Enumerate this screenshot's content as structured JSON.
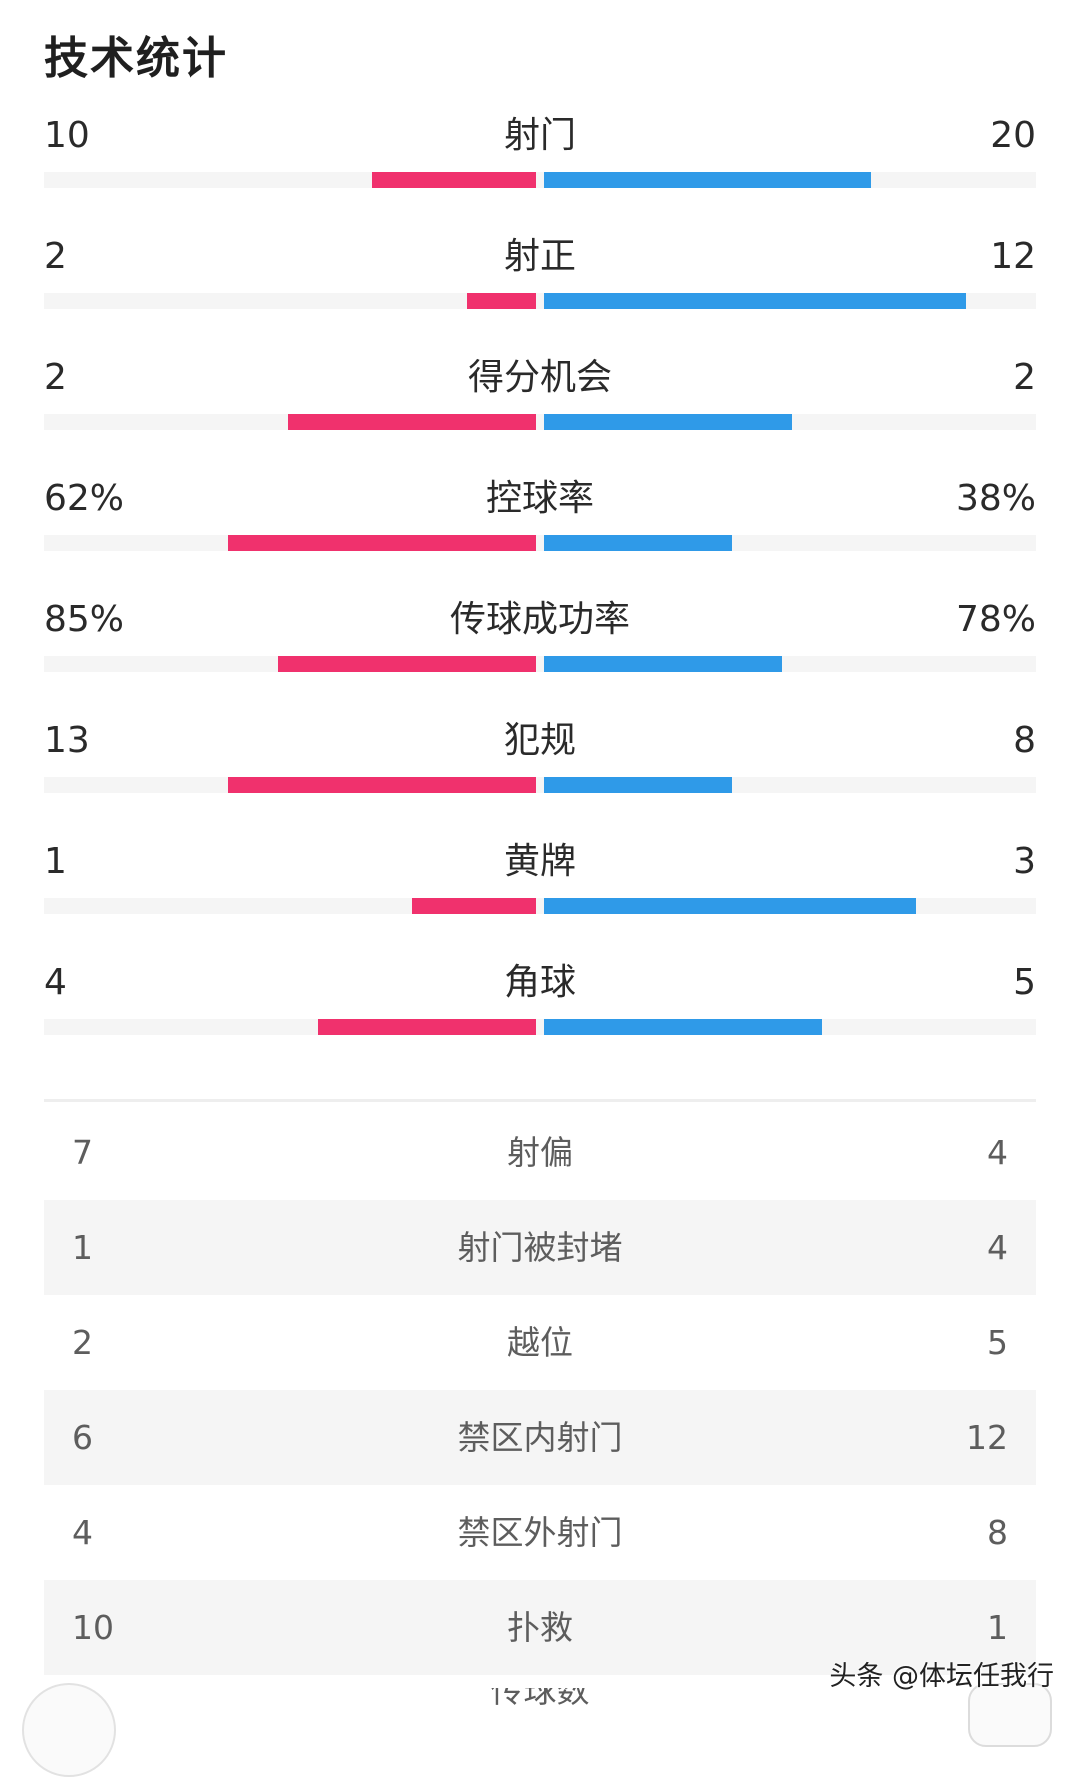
{
  "title": "技术统计",
  "colors": {
    "home": "#f0316d",
    "away": "#2f9ae8",
    "track": "#f5f5f5"
  },
  "bar_stats": [
    {
      "label": "射门",
      "home": "10",
      "away": "20",
      "home_frac": 0.33,
      "away_frac": 0.66
    },
    {
      "label": "射正",
      "home": "2",
      "away": "12",
      "home_frac": 0.14,
      "away_frac": 0.85
    },
    {
      "label": "得分机会",
      "home": "2",
      "away": "2",
      "home_frac": 0.5,
      "away_frac": 0.5
    },
    {
      "label": "控球率",
      "home": "62%",
      "away": "38%",
      "home_frac": 0.62,
      "away_frac": 0.38
    },
    {
      "label": "传球成功率",
      "home": "85%",
      "away": "78%",
      "home_frac": 0.52,
      "away_frac": 0.48
    },
    {
      "label": "犯规",
      "home": "13",
      "away": "8",
      "home_frac": 0.62,
      "away_frac": 0.38
    },
    {
      "label": "黄牌",
      "home": "1",
      "away": "3",
      "home_frac": 0.25,
      "away_frac": 0.75
    },
    {
      "label": "角球",
      "home": "4",
      "away": "5",
      "home_frac": 0.44,
      "away_frac": 0.56
    }
  ],
  "table_stats": [
    {
      "label": "射偏",
      "home": "7",
      "away": "4"
    },
    {
      "label": "射门被封堵",
      "home": "1",
      "away": "4"
    },
    {
      "label": "越位",
      "home": "2",
      "away": "5"
    },
    {
      "label": "禁区内射门",
      "home": "6",
      "away": "12"
    },
    {
      "label": "禁区外射门",
      "home": "4",
      "away": "8"
    },
    {
      "label": "扑救",
      "home": "10",
      "away": "1"
    }
  ],
  "partial_row_label": "传球数",
  "watermark": "头条 @体坛任我行"
}
